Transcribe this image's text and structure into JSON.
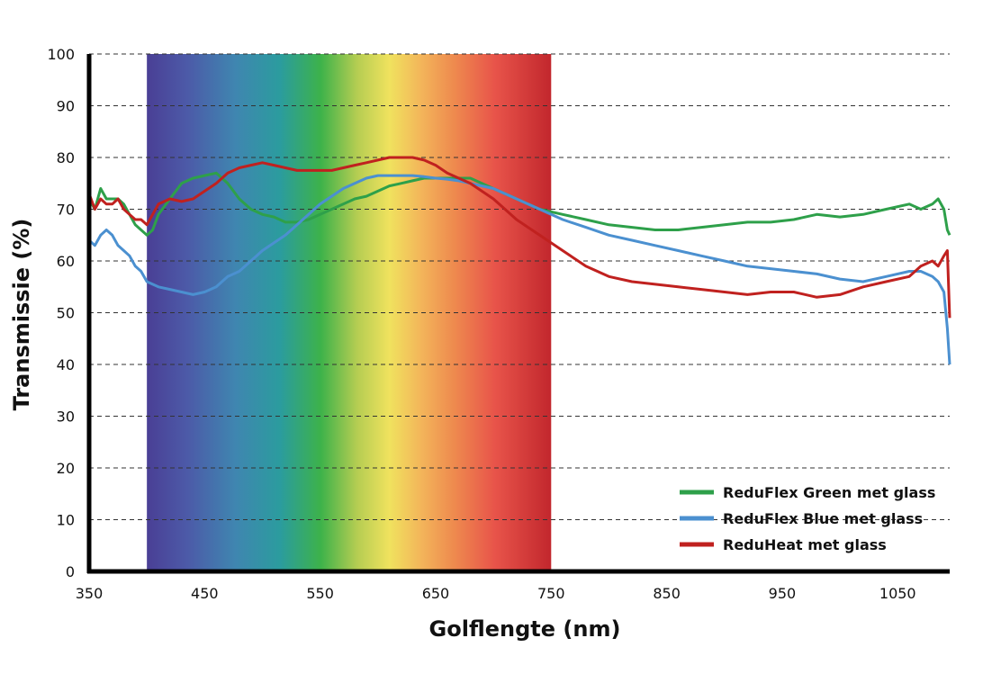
{
  "chart_data": {
    "type": "line",
    "xlabel": "Golflengte (nm)",
    "ylabel": "Transmissie (%)",
    "xlim": [
      350,
      1095
    ],
    "ylim": [
      0,
      100
    ],
    "xticks": [
      350,
      450,
      550,
      650,
      750,
      850,
      950,
      1050
    ],
    "yticks": [
      0,
      10,
      20,
      30,
      40,
      50,
      60,
      70,
      80,
      90,
      100
    ],
    "grid": "horizontal-dashed",
    "legend": "bottom-right",
    "visible_spectrum_band": [
      400,
      750
    ],
    "series": [
      {
        "name": "ReduFlex Green met glass",
        "color": "#2ea04a",
        "x": [
          350,
          355,
          360,
          365,
          370,
          375,
          380,
          385,
          390,
          395,
          400,
          405,
          410,
          420,
          430,
          440,
          450,
          460,
          470,
          480,
          490,
          500,
          510,
          520,
          530,
          540,
          550,
          560,
          570,
          580,
          590,
          600,
          610,
          620,
          630,
          640,
          650,
          660,
          670,
          680,
          690,
          700,
          710,
          720,
          730,
          740,
          750,
          760,
          780,
          800,
          820,
          840,
          860,
          880,
          900,
          920,
          940,
          960,
          980,
          1000,
          1020,
          1040,
          1060,
          1070,
          1080,
          1085,
          1090,
          1093,
          1095
        ],
        "y": [
          72,
          70,
          74,
          72,
          72,
          72,
          71,
          69,
          67,
          66,
          65,
          66,
          69,
          72,
          75,
          76,
          76.5,
          77,
          75,
          72,
          70,
          69,
          68.5,
          67.5,
          67.5,
          68,
          69,
          70,
          71,
          72,
          72.5,
          73.5,
          74.5,
          75,
          75.5,
          76,
          76,
          76,
          76,
          76,
          75,
          74,
          73,
          72,
          71,
          70,
          69.5,
          69,
          68,
          67,
          66.5,
          66,
          66,
          66.5,
          67,
          67.5,
          67.5,
          68,
          69,
          68.5,
          69,
          70,
          71,
          70,
          71,
          72,
          70,
          66,
          65
        ]
      },
      {
        "name": "ReduFlex Blue met glass",
        "color": "#4b90d0",
        "x": [
          350,
          355,
          360,
          365,
          370,
          375,
          380,
          385,
          390,
          395,
          400,
          410,
          420,
          430,
          440,
          450,
          460,
          470,
          480,
          490,
          500,
          510,
          520,
          530,
          540,
          550,
          560,
          570,
          580,
          590,
          600,
          610,
          620,
          630,
          640,
          650,
          660,
          670,
          680,
          690,
          700,
          710,
          720,
          730,
          740,
          750,
          760,
          780,
          800,
          820,
          840,
          860,
          880,
          900,
          920,
          940,
          960,
          980,
          1000,
          1020,
          1040,
          1060,
          1070,
          1080,
          1085,
          1090,
          1093,
          1095
        ],
        "y": [
          64,
          63,
          65,
          66,
          65,
          63,
          62,
          61,
          59,
          58,
          56,
          55,
          54.5,
          54,
          53.5,
          54,
          55,
          57,
          58,
          60,
          62,
          63.5,
          65,
          67,
          69,
          71,
          72.5,
          74,
          75,
          76,
          76.5,
          76.5,
          76.5,
          76.5,
          76.3,
          76,
          75.8,
          75.5,
          75,
          74.5,
          74,
          73,
          72,
          71,
          70,
          69,
          68,
          66.5,
          65,
          64,
          63,
          62,
          61,
          60,
          59,
          58.5,
          58,
          57.5,
          56.5,
          56,
          57,
          58,
          58,
          57,
          56,
          54,
          47,
          40
        ]
      },
      {
        "name": "ReduHeat met glass",
        "color": "#c0211f",
        "x": [
          350,
          355,
          360,
          365,
          370,
          375,
          380,
          385,
          390,
          395,
          400,
          405,
          410,
          420,
          430,
          440,
          450,
          460,
          470,
          480,
          490,
          500,
          510,
          520,
          530,
          540,
          550,
          560,
          570,
          580,
          590,
          600,
          610,
          620,
          630,
          640,
          650,
          660,
          670,
          680,
          690,
          700,
          710,
          720,
          730,
          740,
          750,
          760,
          780,
          800,
          820,
          840,
          860,
          880,
          900,
          920,
          940,
          960,
          980,
          1000,
          1020,
          1040,
          1060,
          1070,
          1080,
          1085,
          1090,
          1093,
          1095
        ],
        "y": [
          73,
          70,
          72,
          71,
          71,
          72,
          70,
          69,
          68,
          68,
          67,
          69,
          71,
          72,
          71.5,
          72,
          73.5,
          75,
          77,
          78,
          78.5,
          79,
          78.5,
          78,
          77.5,
          77.5,
          77.5,
          77.5,
          78,
          78.5,
          79,
          79.5,
          80,
          80,
          80,
          79.5,
          78.5,
          77,
          76,
          75,
          73.5,
          72,
          70,
          68,
          66.5,
          65,
          63.5,
          62,
          59,
          57,
          56,
          55.5,
          55,
          54.5,
          54,
          53.5,
          54,
          54,
          53,
          53.5,
          55,
          56,
          57,
          59,
          60,
          59,
          61,
          62,
          49
        ]
      }
    ]
  }
}
